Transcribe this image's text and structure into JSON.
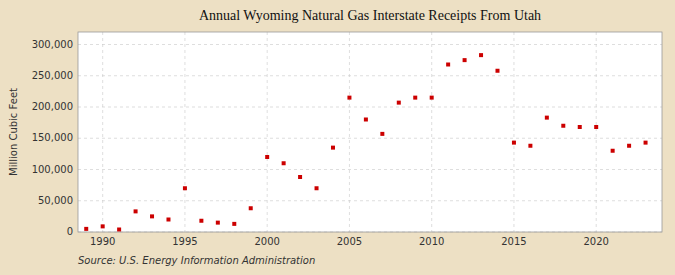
{
  "chart_data": {
    "type": "scatter",
    "title": "Annual Wyoming Natural Gas Interstate Receipts From Utah",
    "ylabel": "Million Cubic Feet",
    "annotations": [
      "Source: U.S. Energy Information Administration"
    ],
    "x": [
      1989,
      1990,
      1991,
      1992,
      1993,
      1994,
      1995,
      1996,
      1997,
      1998,
      1999,
      2000,
      2001,
      2002,
      2003,
      2004,
      2005,
      2006,
      2007,
      2008,
      2009,
      2010,
      2011,
      2012,
      2013,
      2014,
      2015,
      2016,
      2017,
      2018,
      2019,
      2020,
      2021,
      2022,
      2023
    ],
    "values": [
      5000,
      9000,
      4000,
      33000,
      25000,
      20000,
      70000,
      18000,
      15000,
      13000,
      38000,
      120000,
      110000,
      88000,
      70000,
      135000,
      215000,
      180000,
      157000,
      207000,
      215000,
      215000,
      268000,
      275000,
      283000,
      258000,
      143000,
      138000,
      183000,
      170000,
      168000,
      168000,
      130000,
      138000,
      143000
    ],
    "color": "#cc0000",
    "marker": "square",
    "grid": true,
    "xlim": [
      1988.5,
      2024
    ],
    "ylim": [
      0,
      320000
    ],
    "xticks": [
      1990,
      1995,
      2000,
      2005,
      2010,
      2015,
      2020
    ],
    "yticks": [
      0,
      {
        "value": 50000,
        "label": "50,000"
      },
      {
        "value": 100000,
        "label": "100,000"
      },
      {
        "value": 150000,
        "label": "150,000"
      },
      {
        "value": 200000,
        "label": "200,000"
      },
      {
        "value": 250000,
        "label": "250,000"
      },
      {
        "value": 300000,
        "label": "300,000"
      }
    ]
  }
}
